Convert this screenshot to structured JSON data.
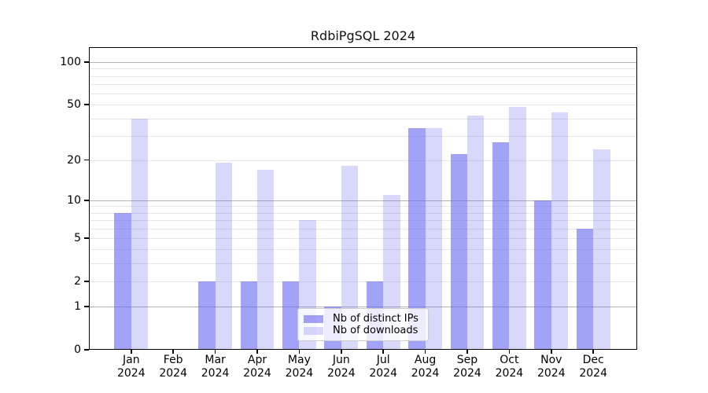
{
  "chart_data": {
    "type": "bar",
    "title": "RdbiPgSQL 2024",
    "categories": [
      "Jan",
      "Feb",
      "Mar",
      "Apr",
      "May",
      "Jun",
      "Jul",
      "Aug",
      "Sep",
      "Oct",
      "Nov",
      "Dec"
    ],
    "year_label": "2024",
    "series": [
      {
        "name": "Nb of distinct IPs",
        "values": [
          8,
          0,
          2,
          2,
          2,
          1,
          2,
          34,
          22,
          27,
          10,
          6
        ],
        "color": "#6464f0",
        "alpha": 0.6
      },
      {
        "name": "Nb of downloads",
        "values": [
          40,
          0,
          19,
          17,
          7,
          18,
          11,
          34,
          42,
          48,
          44,
          24
        ],
        "color": "#6464f0",
        "alpha": 0.25
      }
    ],
    "xlabel": "",
    "ylabel": "",
    "y_scale": "log1p",
    "ylim": [
      0,
      129
    ],
    "y_ticks": [
      0,
      1,
      2,
      5,
      10,
      20,
      50,
      100
    ],
    "grid": true,
    "grid_major_values": [
      1,
      10,
      100
    ],
    "grid_minor_values": [
      2,
      3,
      4,
      5,
      6,
      7,
      8,
      9,
      20,
      30,
      40,
      50,
      60,
      70,
      80,
      90
    ],
    "legend_position": "lower center",
    "colors": {
      "grid_major": "#b2b2b2",
      "grid_minor": "#e7e7e7",
      "axis": "#000000",
      "background": "#ffffff"
    }
  }
}
